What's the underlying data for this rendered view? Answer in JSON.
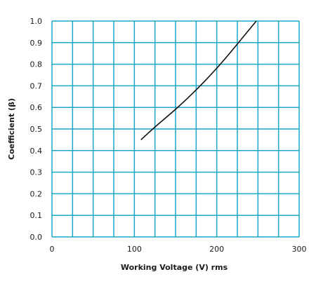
{
  "chart_data": {
    "type": "line",
    "title": "",
    "xlabel": "Working Voltage (V) rms",
    "ylabel": "Coefficient (β)",
    "xlim": [
      0,
      300
    ],
    "ylim": [
      0,
      1.0
    ],
    "x_ticks": [
      "0",
      "100",
      "200",
      "300"
    ],
    "y_ticks": [
      "0.0",
      "0.1",
      "0.2",
      "0.3",
      "0.4",
      "0.5",
      "0.6",
      "0.7",
      "0.8",
      "0.9",
      "1.0"
    ],
    "grid": true,
    "x_grid_step": 25,
    "y_grid_step": 0.1,
    "grid_color": "#1ba7c7",
    "line_color": "#111111",
    "series": [
      {
        "x": [
          108,
          125,
          150,
          175,
          200,
          220,
          235,
          248
        ],
        "y": [
          0.45,
          0.51,
          0.59,
          0.68,
          0.78,
          0.87,
          0.94,
          1.0
        ]
      }
    ]
  }
}
